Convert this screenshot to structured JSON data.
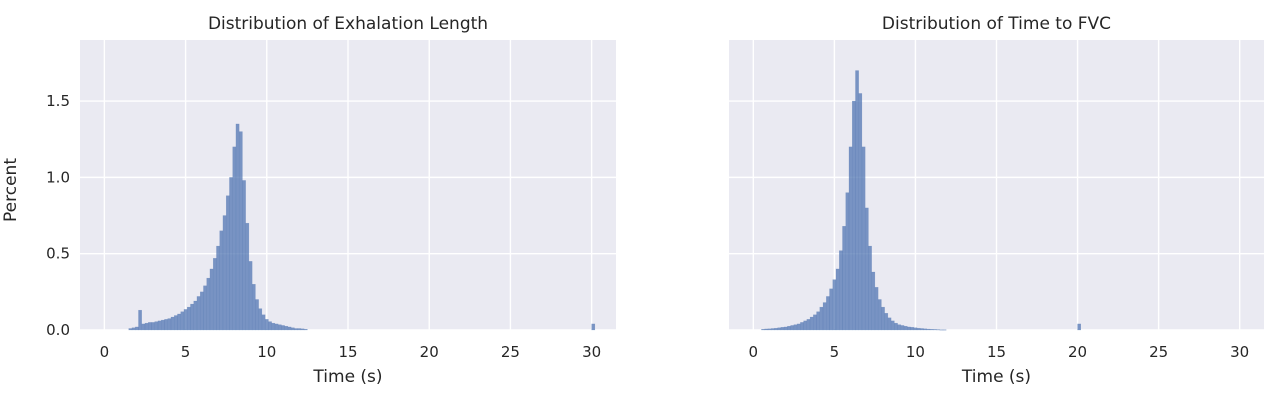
{
  "chart_data": [
    {
      "type": "histogram",
      "title": "Distribution of Exhalation Length",
      "xlabel": "Time (s)",
      "ylabel": "Percent",
      "xlim": [
        -1.5,
        31.5
      ],
      "ylim": [
        0,
        1.9
      ],
      "xticks": [
        0,
        5,
        10,
        15,
        20,
        25,
        30
      ],
      "yticks": [
        0.0,
        0.5,
        1.0,
        1.5
      ],
      "ytick_labels": [
        "0.0",
        "0.5",
        "1.0",
        "1.5"
      ],
      "grid": true,
      "bar_color": "#4c72b0",
      "bins": {
        "x": [
          1.5,
          1.7,
          1.9,
          2.1,
          2.3,
          2.5,
          2.7,
          2.9,
          3.1,
          3.3,
          3.5,
          3.7,
          3.9,
          4.1,
          4.3,
          4.5,
          4.7,
          4.9,
          5.1,
          5.3,
          5.5,
          5.7,
          5.9,
          6.1,
          6.3,
          6.5,
          6.7,
          6.9,
          7.1,
          7.3,
          7.5,
          7.7,
          7.9,
          8.1,
          8.3,
          8.5,
          8.7,
          8.9,
          9.1,
          9.3,
          9.5,
          9.7,
          9.9,
          10.1,
          10.3,
          10.5,
          10.7,
          10.9,
          11.1,
          11.3,
          11.5,
          11.7,
          11.9,
          12.1,
          12.3,
          30.0
        ],
        "percent": [
          0.01,
          0.015,
          0.02,
          0.13,
          0.04,
          0.045,
          0.05,
          0.05,
          0.055,
          0.06,
          0.065,
          0.07,
          0.075,
          0.085,
          0.095,
          0.105,
          0.12,
          0.135,
          0.15,
          0.17,
          0.19,
          0.22,
          0.25,
          0.29,
          0.34,
          0.4,
          0.47,
          0.55,
          0.65,
          0.75,
          0.88,
          1.0,
          1.2,
          1.35,
          1.3,
          0.98,
          0.7,
          0.45,
          0.3,
          0.2,
          0.14,
          0.1,
          0.07,
          0.055,
          0.045,
          0.04,
          0.035,
          0.03,
          0.025,
          0.02,
          0.015,
          0.01,
          0.01,
          0.008,
          0.005,
          0.04
        ]
      }
    },
    {
      "type": "histogram",
      "title": "Distribution of Time to FVC",
      "xlabel": "Time (s)",
      "ylabel": "",
      "xlim": [
        -1.5,
        31.5
      ],
      "ylim": [
        0,
        1.9
      ],
      "xticks": [
        0,
        5,
        10,
        15,
        20,
        25,
        30
      ],
      "yticks": [
        0.0,
        0.5,
        1.0,
        1.5
      ],
      "grid": true,
      "bar_color": "#4c72b0",
      "bins": {
        "x": [
          0.5,
          0.7,
          0.9,
          1.1,
          1.3,
          1.5,
          1.7,
          1.9,
          2.1,
          2.3,
          2.5,
          2.7,
          2.9,
          3.1,
          3.3,
          3.5,
          3.7,
          3.9,
          4.1,
          4.3,
          4.5,
          4.7,
          4.9,
          5.1,
          5.3,
          5.5,
          5.7,
          5.9,
          6.1,
          6.3,
          6.5,
          6.7,
          6.9,
          7.1,
          7.3,
          7.5,
          7.7,
          7.9,
          8.1,
          8.3,
          8.5,
          8.7,
          8.9,
          9.1,
          9.3,
          9.5,
          9.7,
          9.9,
          10.1,
          10.3,
          10.5,
          10.7,
          10.9,
          11.1,
          11.3,
          11.5,
          11.7,
          20.0
        ],
        "percent": [
          0.005,
          0.007,
          0.008,
          0.01,
          0.012,
          0.015,
          0.018,
          0.02,
          0.025,
          0.03,
          0.035,
          0.04,
          0.05,
          0.06,
          0.07,
          0.085,
          0.1,
          0.12,
          0.15,
          0.18,
          0.22,
          0.27,
          0.33,
          0.4,
          0.52,
          0.68,
          0.9,
          1.2,
          1.5,
          1.7,
          1.55,
          1.2,
          0.8,
          0.55,
          0.38,
          0.28,
          0.2,
          0.15,
          0.11,
          0.08,
          0.06,
          0.045,
          0.035,
          0.03,
          0.025,
          0.02,
          0.018,
          0.015,
          0.012,
          0.01,
          0.008,
          0.006,
          0.005,
          0.004,
          0.003,
          0.002,
          0.002,
          0.04
        ]
      }
    }
  ]
}
